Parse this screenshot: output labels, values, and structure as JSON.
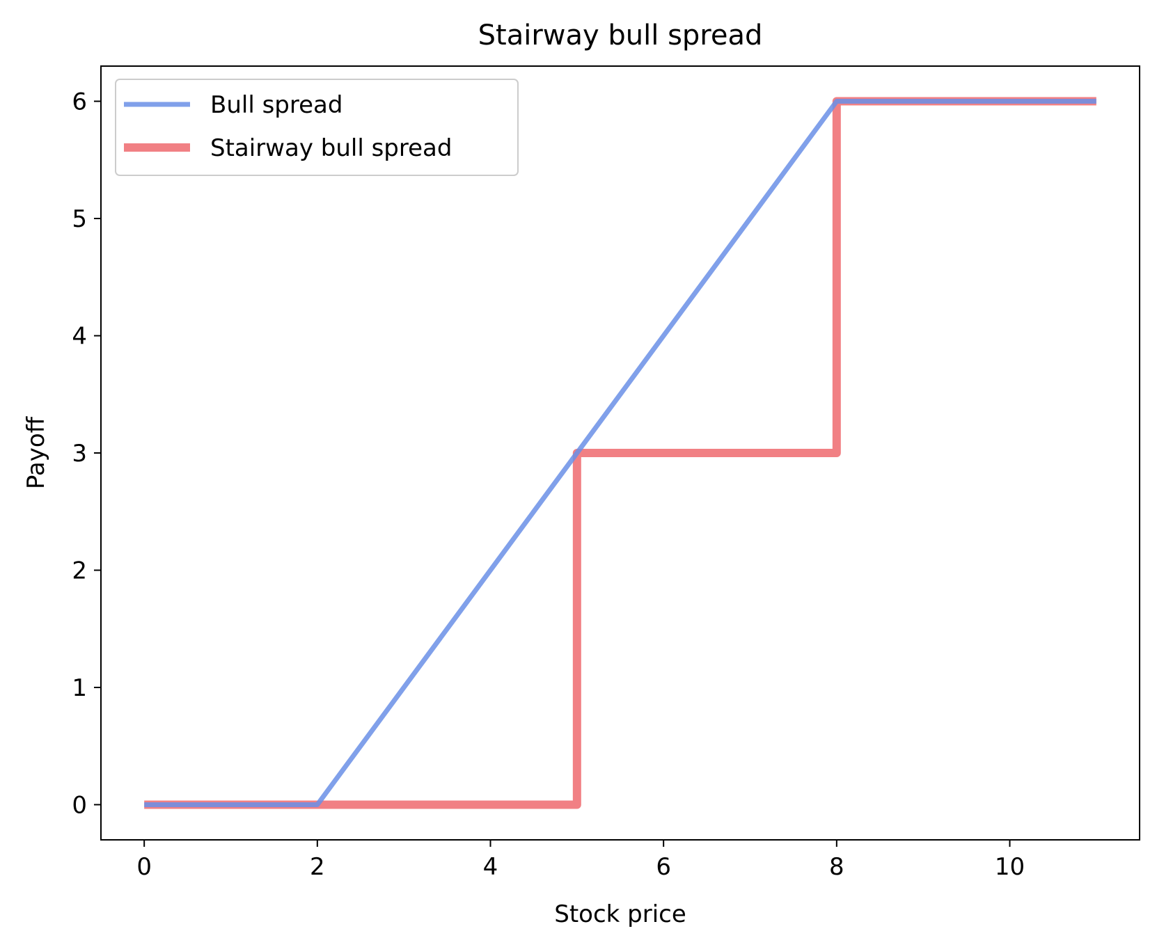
{
  "chart_data": {
    "type": "line",
    "title": "Stairway bull spread",
    "xlabel": "Stock price",
    "ylabel": "Payoff",
    "xlim": [
      -0.5,
      11.5
    ],
    "ylim": [
      -0.3,
      6.3
    ],
    "xticks": [
      0,
      2,
      4,
      6,
      8,
      10
    ],
    "yticks": [
      0,
      1,
      2,
      3,
      4,
      5,
      6
    ],
    "grid": false,
    "legend_position": "top-left",
    "series": [
      {
        "name": "Bull spread",
        "color": "#6a8fe6",
        "x": [
          0,
          2,
          8,
          11
        ],
        "y": [
          0,
          0,
          6,
          6
        ]
      },
      {
        "name": "Stairway bull spread",
        "color": "#ee6a6f",
        "x": [
          0,
          5,
          5,
          8,
          8,
          11
        ],
        "y": [
          0,
          0,
          3,
          3,
          6,
          6
        ]
      }
    ]
  }
}
